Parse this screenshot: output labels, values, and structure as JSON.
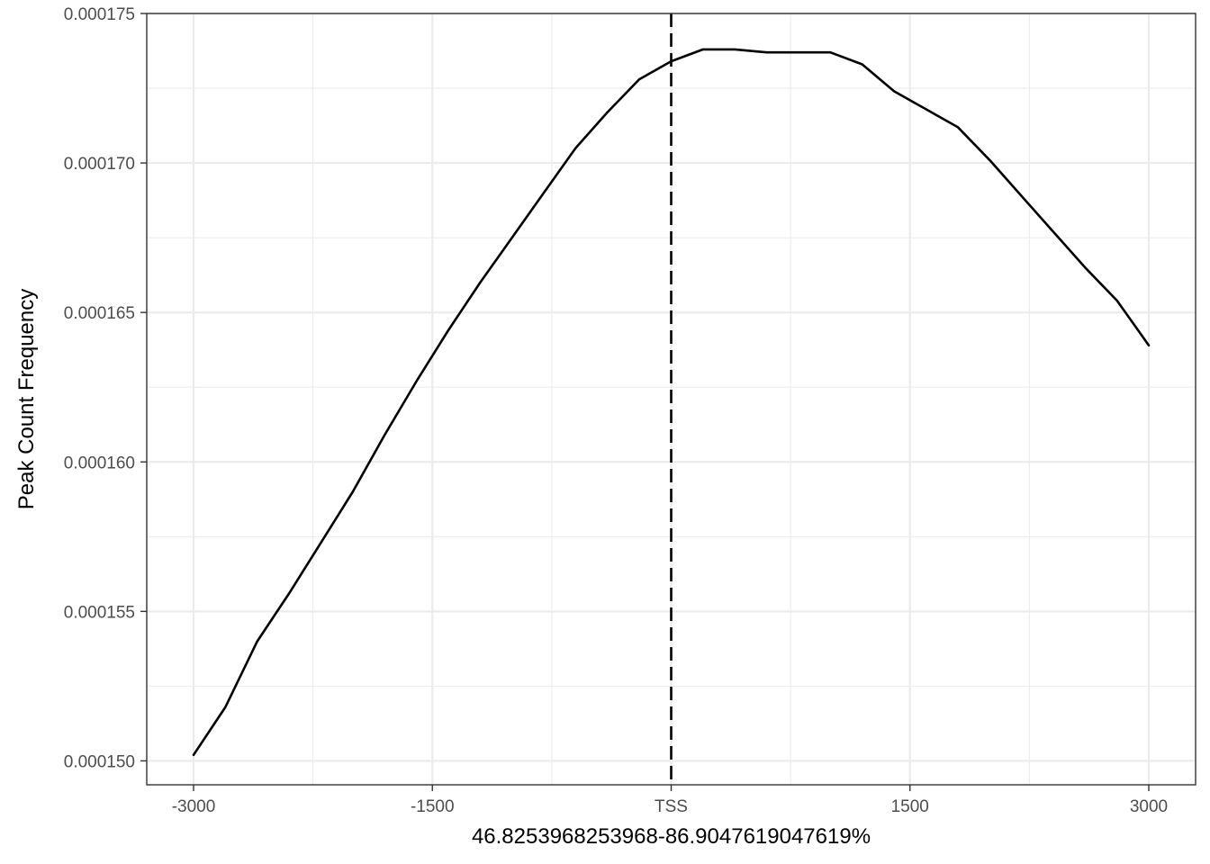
{
  "chart_data": {
    "type": "line",
    "title": "",
    "xlabel": "46.8253968253968-86.9047619047619%",
    "ylabel": "Peak Count Frequency",
    "xlim": [
      -3000,
      3000
    ],
    "ylim": [
      0.0001492,
      0.000175
    ],
    "x_ticks": [
      {
        "value": -3000,
        "label": "-3000"
      },
      {
        "value": -1500,
        "label": "-1500"
      },
      {
        "value": 0,
        "label": "TSS"
      },
      {
        "value": 1500,
        "label": "1500"
      },
      {
        "value": 3000,
        "label": "3000"
      }
    ],
    "y_ticks": [
      {
        "value": 0.00015,
        "label": "0.000150"
      },
      {
        "value": 0.000155,
        "label": "0.000155"
      },
      {
        "value": 0.00016,
        "label": "0.000160"
      },
      {
        "value": 0.000165,
        "label": "0.000165"
      },
      {
        "value": 0.00017,
        "label": "0.000170"
      },
      {
        "value": 0.000175,
        "label": "0.000175"
      }
    ],
    "grid": true,
    "vline": {
      "x": 0,
      "style": "dashed",
      "color": "#000000"
    },
    "series": [
      {
        "color": "#000000",
        "x": [
          -3000,
          -2800,
          -2600,
          -2400,
          -2200,
          -2000,
          -1800,
          -1600,
          -1400,
          -1200,
          -1000,
          -800,
          -600,
          -400,
          -200,
          0,
          200,
          400,
          600,
          800,
          1000,
          1200,
          1400,
          1600,
          1800,
          2000,
          2200,
          2400,
          2600,
          2800,
          3000
        ],
        "y": [
          0.0001502,
          0.0001518,
          0.000154,
          0.0001556,
          0.0001573,
          0.000159,
          0.0001609,
          0.0001627,
          0.0001644,
          0.000166,
          0.0001675,
          0.000169,
          0.0001705,
          0.0001717,
          0.0001728,
          0.0001734,
          0.0001738,
          0.0001738,
          0.0001737,
          0.0001737,
          0.0001737,
          0.0001733,
          0.0001724,
          0.0001718,
          0.0001712,
          0.0001701,
          0.0001689,
          0.0001677,
          0.0001665,
          0.0001654,
          0.0001639
        ]
      }
    ]
  }
}
